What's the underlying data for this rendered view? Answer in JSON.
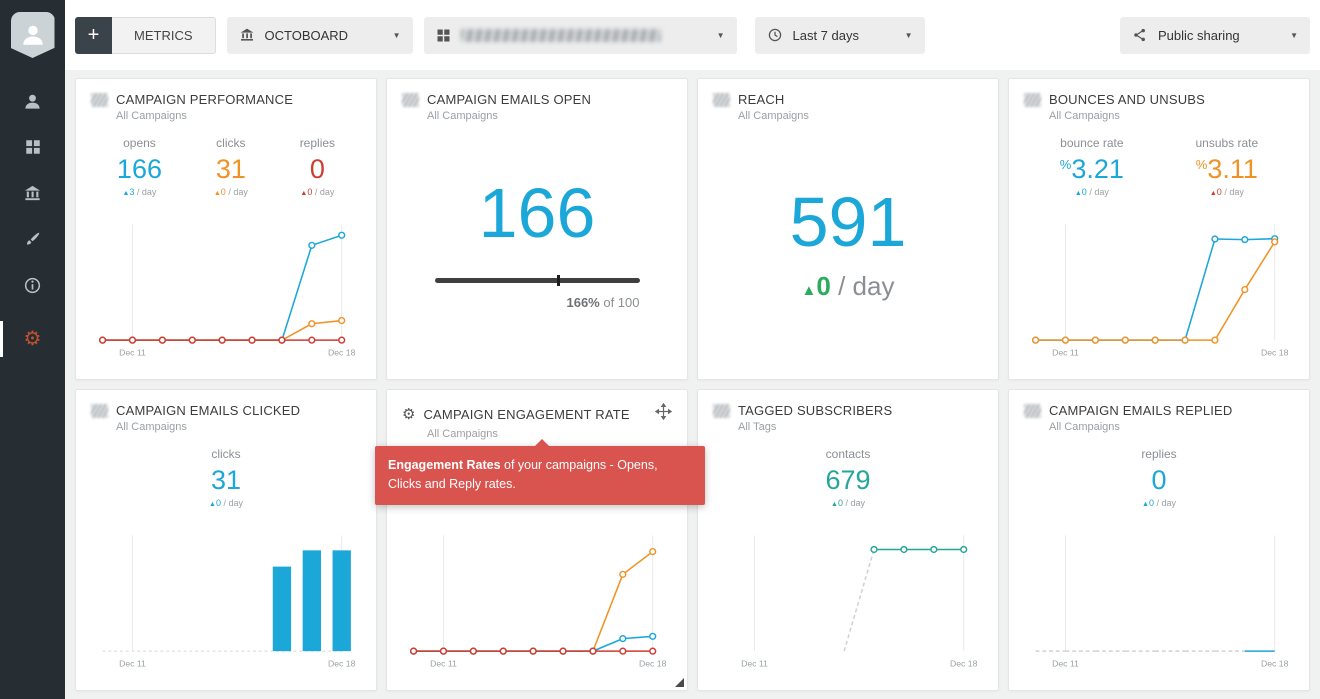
{
  "strings": {
    "up": "▲",
    "per_day": "/ day",
    "percent": "%"
  },
  "colors": {
    "blue": "#1ba7d8",
    "orange": "#ef9327",
    "red": "#ce3c32",
    "teal": "#26a69a",
    "green": "#2bab5d",
    "tooltip_red": "#d9534f",
    "sidebar_bg": "#262d33",
    "active_gear": "#c0512f"
  },
  "topbar": {
    "metrics": {
      "plus": "+",
      "label": "METRICS"
    },
    "board_dropdown": {
      "label": "OCTOBOARD",
      "icon": "bank-icon"
    },
    "account_dropdown": {
      "icon": "grid-icon",
      "blurred": true
    },
    "daterange_dropdown": {
      "label": "Last 7 days",
      "icon": "clock-icon"
    },
    "sharing_dropdown": {
      "label": "Public sharing",
      "icon": "share-icon"
    }
  },
  "sidebar": {
    "icons": [
      "user-icon",
      "dashboard-icon",
      "bank-icon",
      "brush-icon",
      "info-icon",
      "gear-icon"
    ],
    "active_index": 5
  },
  "tooltip": {
    "bold": "Engagement Rates",
    "rest": " of your campaigns - Opens, Clicks and Reply rates."
  },
  "cards": [
    {
      "title": "CAMPAIGN PERFORMANCE",
      "subtitle": "All Campaigns",
      "stats": [
        {
          "label": "opens",
          "value": "166",
          "delta": "3"
        },
        {
          "label": "clicks",
          "value": "31",
          "delta": "0"
        },
        {
          "label": "replies",
          "value": "0",
          "delta": "0"
        }
      ],
      "chart": {
        "type": "line",
        "n": 9,
        "ylim": [
          0,
          180
        ],
        "xticks": [
          {
            "i": 1,
            "t": "Dec 11"
          },
          {
            "i": 8,
            "t": "Dec 18"
          }
        ],
        "series": [
          {
            "name": "opens",
            "color": "#1ba7d8",
            "values": [
              0,
              0,
              0,
              0,
              0,
              0,
              0,
              150,
              166
            ]
          },
          {
            "name": "clicks",
            "color": "#ef9327",
            "values": [
              0,
              0,
              0,
              0,
              0,
              0,
              0,
              26,
              31
            ]
          },
          {
            "name": "replies",
            "color": "#ce3c32",
            "values": [
              0,
              0,
              0,
              0,
              0,
              0,
              0,
              0,
              0
            ]
          }
        ]
      }
    },
    {
      "title": "CAMPAIGN EMAILS OPEN",
      "subtitle": "All Campaigns",
      "big": "166",
      "progress": {
        "bold": "166%",
        "rest": " of 100",
        "marker_percent": 60
      }
    },
    {
      "title": "REACH",
      "subtitle": "All Campaigns",
      "big": "591",
      "delta": "0",
      "delta_suffix": " / day"
    },
    {
      "title": "BOUNCES AND UNSUBS",
      "subtitle": "All Campaigns",
      "stats": [
        {
          "label": "bounce rate",
          "value": "3.21",
          "delta": "0",
          "prefix": "%"
        },
        {
          "label": "unsubs rate",
          "value": "3.11",
          "delta": "0",
          "prefix": "%"
        }
      ],
      "chart": {
        "type": "line",
        "n": 9,
        "ylim": [
          0,
          3.6
        ],
        "xticks": [
          {
            "i": 1,
            "t": "Dec 11"
          },
          {
            "i": 8,
            "t": "Dec 18"
          }
        ],
        "series": [
          {
            "name": "bounce rate",
            "color": "#1ba7d8",
            "values": [
              0,
              0,
              0,
              0,
              0,
              0,
              3.2,
              3.18,
              3.21
            ]
          },
          {
            "name": "unsubs rate",
            "color": "#ef9327",
            "values": [
              0,
              0,
              0,
              0,
              0,
              0,
              0,
              1.6,
              3.11
            ]
          }
        ]
      }
    },
    {
      "title": "CAMPAIGN EMAILS CLICKED",
      "subtitle": "All Campaigns",
      "stats": [
        {
          "label": "clicks",
          "value": "31",
          "delta": "0"
        }
      ],
      "chart": {
        "type": "bar",
        "n": 9,
        "ylim": [
          0,
          35
        ],
        "color": "#1ba7d8",
        "xticks": [
          {
            "i": 1,
            "t": "Dec 11"
          },
          {
            "i": 8,
            "t": "Dec 18"
          }
        ],
        "values": [
          0,
          0,
          0,
          0,
          0,
          0,
          26,
          31,
          31
        ]
      }
    },
    {
      "title": "CAMPAIGN ENGAGEMENT RATE",
      "subtitle": "All Campaigns",
      "chart": {
        "type": "line",
        "n": 9,
        "ylim": [
          0,
          20
        ],
        "xticks": [
          {
            "i": 1,
            "t": "Dec 11"
          },
          {
            "i": 8,
            "t": "Dec 18"
          }
        ],
        "series": [
          {
            "name": "opens rate",
            "color": "#ef9327",
            "values": [
              0,
              0,
              0,
              0,
              0,
              0,
              0,
              13.5,
              17.5
            ]
          },
          {
            "name": "clicks rate",
            "color": "#1ba7d8",
            "values": [
              0,
              0,
              0,
              0,
              0,
              0,
              0,
              2.2,
              2.6
            ]
          },
          {
            "name": "reply rate",
            "color": "#ce3c32",
            "values": [
              0,
              0,
              0,
              0,
              0,
              0,
              0,
              0,
              0
            ]
          }
        ]
      }
    },
    {
      "title": "TAGGED SUBSCRIBERS",
      "subtitle": "All Tags",
      "stats": [
        {
          "label": "contacts",
          "value": "679",
          "delta": "0"
        }
      ],
      "chart": {
        "type": "line",
        "n": 9,
        "ylim": [
          0,
          760
        ],
        "xticks": [
          {
            "i": 1,
            "t": "Dec 11"
          },
          {
            "i": 8,
            "t": "Dec 18"
          }
        ],
        "series": [
          {
            "name": "contacts",
            "color": "#26a69a",
            "values": [
              null,
              null,
              null,
              null,
              0,
              679,
              679,
              679,
              679
            ],
            "dashUntil": 5
          }
        ]
      }
    },
    {
      "title": "CAMPAIGN EMAILS REPLIED",
      "subtitle": "All Campaigns",
      "stats": [
        {
          "label": "replies",
          "value": "0",
          "delta": "0"
        }
      ],
      "chart": {
        "type": "line",
        "n": 9,
        "ylim": [
          0,
          1
        ],
        "xticks": [
          {
            "i": 1,
            "t": "Dec 11"
          },
          {
            "i": 8,
            "t": "Dec 18"
          }
        ],
        "series": [
          {
            "name": "replies",
            "color": "#1ba7d8",
            "values": [
              0,
              0,
              0,
              0,
              0,
              0,
              0,
              0,
              0
            ],
            "dashUntil": 7,
            "markers": false
          }
        ]
      }
    }
  ]
}
